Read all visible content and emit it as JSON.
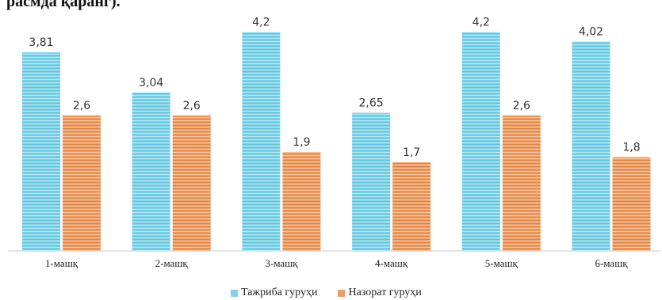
{
  "header": {
    "text": "расмда қаранг)."
  },
  "colors": {
    "series_1": "#7fd3e8",
    "series_2": "#ee9e66",
    "axis": "#c8c8c8"
  },
  "chart_data": {
    "type": "bar",
    "title": "",
    "xlabel": "",
    "ylabel": "",
    "ylim": [
      0,
      4.3
    ],
    "grid": false,
    "legend_position": "bottom",
    "categories": [
      "1-машқ",
      "2-машқ",
      "3-машқ",
      "4-машқ",
      "5-машқ",
      "6-машқ"
    ],
    "series": [
      {
        "name": "Тажриба гуруҳи",
        "values": [
          3.81,
          3.04,
          4.2,
          2.65,
          4.2,
          4.02
        ],
        "labels": [
          "3,81",
          "3,04",
          "4,2",
          "2,65",
          "4,2",
          "4,02"
        ]
      },
      {
        "name": "Назорат гуруҳи",
        "values": [
          2.6,
          2.6,
          1.9,
          1.7,
          2.6,
          1.8
        ],
        "labels": [
          "2,6",
          "2,6",
          "1,9",
          "1,7",
          "2,6",
          "1,8"
        ]
      }
    ]
  }
}
